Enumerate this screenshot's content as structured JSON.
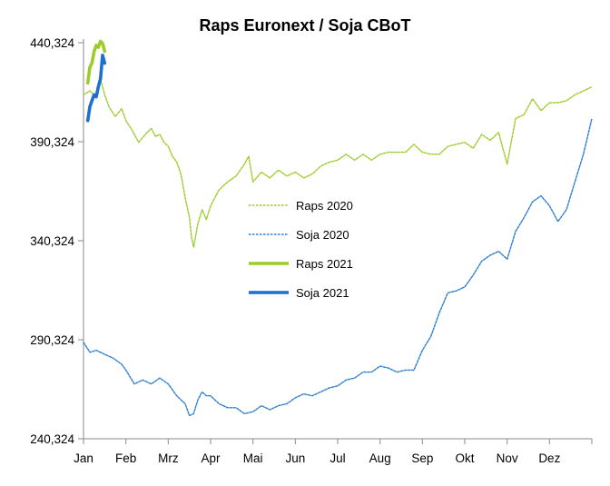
{
  "chart_data": {
    "type": "line",
    "title": "Raps Euronext / Soja CBoT",
    "xlabel": "",
    "ylabel": "",
    "ylim": [
      240.324,
      440.324
    ],
    "y_ticks": [
      "440,324",
      "390,324",
      "340,324",
      "290,324",
      "240,324"
    ],
    "y_tick_values": [
      440.324,
      390.324,
      340.324,
      290.324,
      240.324
    ],
    "x_ticks": [
      "Jan",
      "Feb",
      "Mrz",
      "Apr",
      "Mai",
      "Jun",
      "Jul",
      "Aug",
      "Sep",
      "Okt",
      "Nov",
      "Dez"
    ],
    "x_domain_months": [
      0,
      12
    ],
    "grid": false,
    "legend_position": "center",
    "series": [
      {
        "name": "Raps 2020",
        "style": "dashed-thin",
        "color": "#9dcc2a",
        "x": [
          0,
          0.15,
          0.3,
          0.4,
          0.5,
          0.6,
          0.75,
          0.9,
          1.0,
          1.15,
          1.3,
          1.5,
          1.6,
          1.7,
          1.8,
          1.9,
          2.0,
          2.1,
          2.2,
          2.3,
          2.4,
          2.5,
          2.55,
          2.6,
          2.7,
          2.8,
          2.9,
          3.0,
          3.2,
          3.4,
          3.6,
          3.8,
          3.9,
          4.0,
          4.2,
          4.4,
          4.6,
          4.8,
          5.0,
          5.2,
          5.4,
          5.6,
          5.8,
          6.0,
          6.2,
          6.4,
          6.6,
          6.8,
          7.0,
          7.2,
          7.4,
          7.6,
          7.8,
          8.0,
          8.2,
          8.4,
          8.6,
          8.8,
          9.0,
          9.2,
          9.4,
          9.6,
          9.8,
          10.0,
          10.2,
          10.4,
          10.6,
          10.8,
          11.0,
          11.2,
          11.4,
          11.6,
          11.8,
          12.0
        ],
        "values": [
          414,
          416,
          413,
          422,
          414,
          408,
          403,
          407,
          401,
          396,
          390,
          395,
          397,
          393,
          394,
          390,
          388,
          383,
          380,
          374,
          362,
          352,
          342,
          337,
          349,
          356,
          351,
          358,
          366,
          370,
          373,
          379,
          383,
          370,
          375,
          372,
          376,
          373,
          375,
          372,
          374,
          378,
          380,
          381,
          384,
          381,
          384,
          381,
          384,
          385,
          385,
          385,
          389,
          385,
          384,
          384,
          388,
          389,
          390,
          387,
          394,
          391,
          395,
          379,
          402,
          404,
          412,
          406,
          410,
          410,
          411,
          414,
          416,
          418
        ]
      },
      {
        "name": "Soja 2020",
        "style": "dashed-thin",
        "color": "#2e7fd0",
        "x": [
          0,
          0.15,
          0.3,
          0.5,
          0.7,
          0.9,
          1.0,
          1.2,
          1.4,
          1.6,
          1.8,
          2.0,
          2.2,
          2.4,
          2.5,
          2.6,
          2.7,
          2.8,
          2.9,
          3.0,
          3.2,
          3.4,
          3.6,
          3.8,
          4.0,
          4.2,
          4.4,
          4.6,
          4.8,
          5.0,
          5.2,
          5.4,
          5.6,
          5.8,
          6.0,
          6.2,
          6.4,
          6.6,
          6.8,
          7.0,
          7.2,
          7.4,
          7.6,
          7.8,
          8.0,
          8.2,
          8.4,
          8.6,
          8.8,
          9.0,
          9.2,
          9.4,
          9.6,
          9.8,
          10.0,
          10.2,
          10.4,
          10.6,
          10.8,
          11.0,
          11.2,
          11.4,
          11.6,
          11.8,
          12.0
        ],
        "values": [
          289,
          284,
          285,
          283,
          281,
          278,
          275,
          268,
          270,
          268,
          271,
          268,
          262,
          258,
          252,
          253,
          260,
          264,
          262,
          262,
          258,
          256,
          256,
          253,
          254,
          257,
          255,
          257,
          258,
          261,
          263,
          262,
          264,
          266,
          267,
          270,
          271,
          274,
          274,
          277,
          276,
          274,
          275,
          275,
          285,
          292,
          304,
          314,
          315,
          317,
          323,
          330,
          333,
          335,
          331,
          345,
          352,
          360,
          363,
          358,
          350,
          356,
          370,
          384,
          402
        ]
      },
      {
        "name": "Raps 2021",
        "style": "solid-thick",
        "color": "#9dcc2a",
        "x": [
          0.1,
          0.15,
          0.2,
          0.25,
          0.3,
          0.35,
          0.4,
          0.45,
          0.5
        ],
        "values": [
          420,
          428,
          430,
          436,
          439,
          438,
          441,
          440,
          436
        ]
      },
      {
        "name": "Soja 2021",
        "style": "solid-thick",
        "color": "#1f6fd0",
        "x": [
          0.1,
          0.15,
          0.2,
          0.25,
          0.3,
          0.35,
          0.4,
          0.45,
          0.5
        ],
        "values": [
          401,
          408,
          411,
          414,
          413,
          418,
          422,
          434,
          430
        ]
      }
    ]
  }
}
